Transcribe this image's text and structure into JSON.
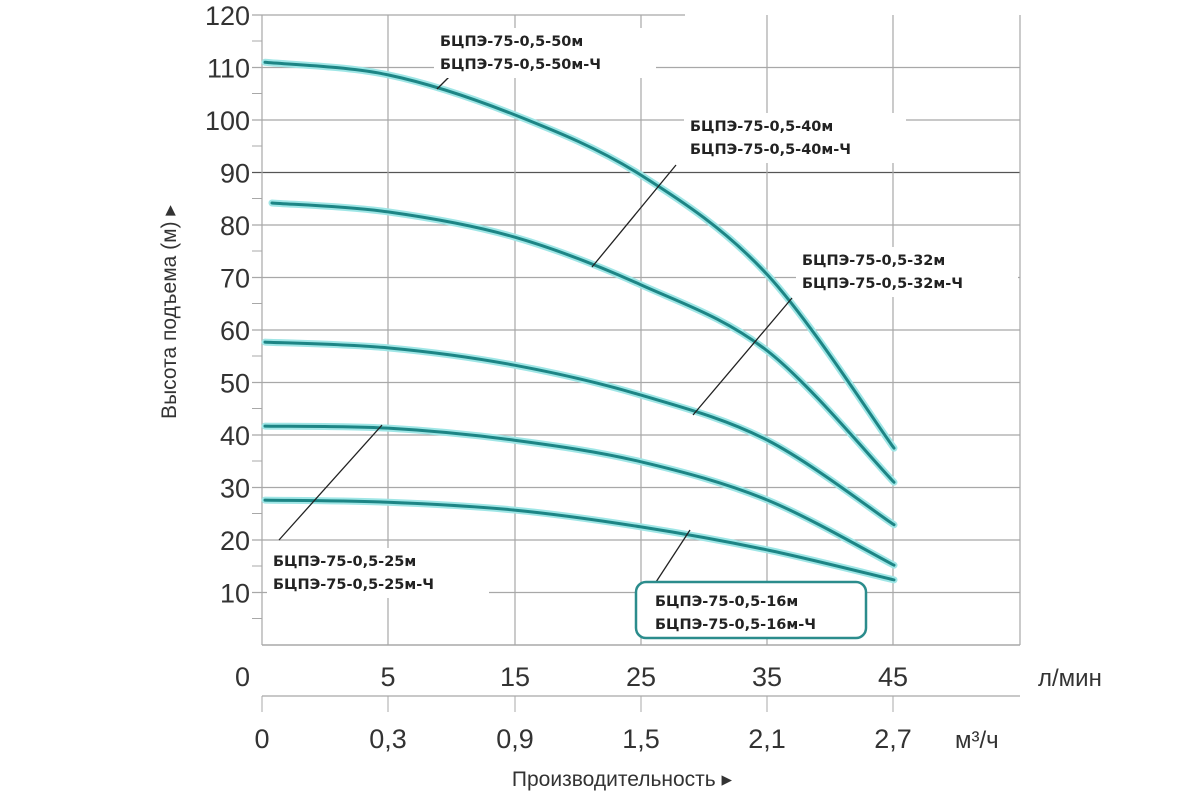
{
  "chart_data": {
    "type": "line",
    "title": "",
    "ylabel": "Высота подъема (м) ▸",
    "xlabel": "Производительность ▸",
    "ylim": [
      0,
      120
    ],
    "yticks": [
      "120",
      "110",
      "100",
      "90",
      "80",
      "70",
      "60",
      "50",
      "40",
      "30",
      "20",
      "10",
      "0"
    ],
    "x_ticks_lmin": [
      "5",
      "15",
      "25",
      "35",
      "45"
    ],
    "x_unit_lmin": "л/мин",
    "x_ticks_m3h": [
      "0",
      "0,3",
      "0,9",
      "1,5",
      "2,1",
      "2,7"
    ],
    "x_unit_m3h": "м³/ч",
    "x": [
      0,
      5,
      15,
      25,
      35,
      45
    ],
    "grid": true,
    "colors": {
      "curve": "#1d8585",
      "glow": "#9fe6e6",
      "grid": "#a8a8a8",
      "box": "#2b8c8c"
    },
    "series": [
      {
        "name": "БЦПЭ-75-0,5-50м",
        "name2": "БЦПЭ-75-0,5-50м-Ч",
        "values": [
          111,
          108.6,
          101,
          89.5,
          70.5,
          37.5
        ]
      },
      {
        "name": "БЦПЭ-75-0,5-40м",
        "name2": "БЦПЭ-75-0,5-40м-Ч",
        "values": [
          84.2,
          82.5,
          77.7,
          68.6,
          56,
          31
        ]
      },
      {
        "name": "БЦПЭ-75-0,5-32м",
        "name2": "БЦПЭ-75-0,5-32м-Ч",
        "values": [
          57.7,
          56.6,
          53.3,
          47.6,
          39,
          22.9
        ]
      },
      {
        "name": "БЦПЭ-75-0,5-25м",
        "name2": "БЦПЭ-75-0,5-25м-Ч",
        "values": [
          41.7,
          41.3,
          39,
          34.9,
          27.6,
          15.2
        ]
      },
      {
        "name": "БЦПЭ-75-0,5-16м",
        "name2": "БЦПЭ-75-0,5-16м-Ч",
        "values": [
          27.6,
          27.2,
          25.7,
          22.5,
          18.1,
          12.4
        ]
      }
    ]
  }
}
